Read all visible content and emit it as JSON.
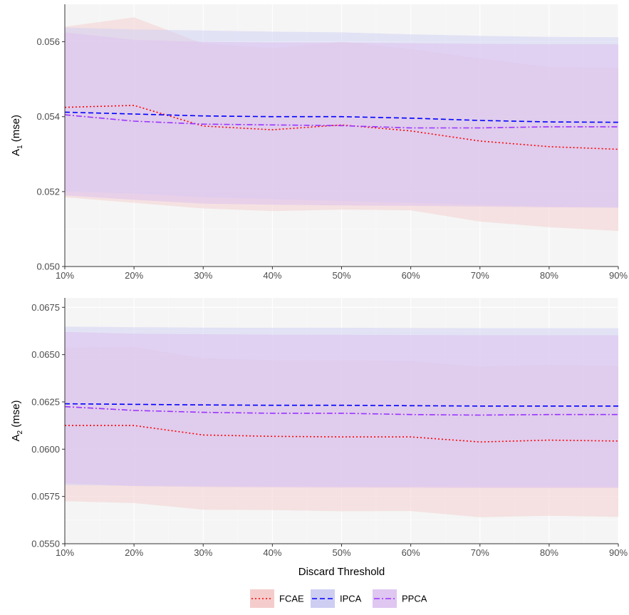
{
  "chart_data": [
    {
      "type": "line",
      "ylabel_main": "A",
      "ylabel_sub": "1",
      "ylabel_suffix": " (mse)",
      "ylim": [
        0.05,
        0.057
      ],
      "yticks": [
        "0.050",
        "0.052",
        "0.054",
        "0.056"
      ],
      "yticks_values": [
        0.05,
        0.052,
        0.054,
        0.056
      ],
      "x": [
        10,
        20,
        30,
        40,
        50,
        60,
        70,
        80,
        90
      ],
      "xticks": [
        "10%",
        "20%",
        "30%",
        "40%",
        "50%",
        "60%",
        "70%",
        "80%",
        "90%"
      ],
      "series": [
        {
          "name": "FCAE",
          "color": "#ff0000",
          "values": [
            0.05425,
            0.0543,
            0.05375,
            0.05365,
            0.05378,
            0.05362,
            0.05335,
            0.0532,
            0.05313
          ],
          "upper": [
            0.0564,
            0.05665,
            0.05595,
            0.05582,
            0.056,
            0.0558,
            0.05555,
            0.05532,
            0.0553
          ],
          "lower": [
            0.05185,
            0.0517,
            0.05155,
            0.05148,
            0.05152,
            0.0515,
            0.0512,
            0.05105,
            0.05095
          ]
        },
        {
          "name": "IPCA",
          "color": "#0000ff",
          "values": [
            0.05412,
            0.05407,
            0.05402,
            0.054,
            0.054,
            0.05396,
            0.0539,
            0.05386,
            0.05385
          ],
          "upper": [
            0.05638,
            0.05633,
            0.0563,
            0.05627,
            0.05625,
            0.0562,
            0.05616,
            0.05613,
            0.05612
          ],
          "lower": [
            0.052,
            0.05195,
            0.05185,
            0.0518,
            0.05175,
            0.0517,
            0.05165,
            0.0516,
            0.05158
          ]
        },
        {
          "name": "PPCA",
          "color": "#9933ff",
          "values": [
            0.05405,
            0.05388,
            0.0538,
            0.05378,
            0.05376,
            0.0537,
            0.0537,
            0.05373,
            0.05373
          ],
          "upper": [
            0.05625,
            0.05605,
            0.056,
            0.05598,
            0.05598,
            0.05596,
            0.05594,
            0.05593,
            0.05593
          ],
          "lower": [
            0.0519,
            0.05178,
            0.05168,
            0.05165,
            0.05163,
            0.05162,
            0.0516,
            0.05158,
            0.05157
          ]
        }
      ]
    },
    {
      "type": "line",
      "ylabel_main": "A",
      "ylabel_sub": "2",
      "ylabel_suffix": " (mse)",
      "xlabel": "Discard Threshold",
      "ylim": [
        0.055,
        0.068
      ],
      "yticks": [
        "0.0550",
        "0.0575",
        "0.0600",
        "0.0625",
        "0.0650",
        "0.0675"
      ],
      "yticks_values": [
        0.055,
        0.0575,
        0.06,
        0.0625,
        0.065,
        0.0675
      ],
      "x": [
        10,
        20,
        30,
        40,
        50,
        60,
        70,
        80,
        90
      ],
      "xticks": [
        "10%",
        "20%",
        "30%",
        "40%",
        "50%",
        "60%",
        "70%",
        "80%",
        "90%"
      ],
      "series": [
        {
          "name": "FCAE",
          "color": "#ff0000",
          "values": [
            0.06125,
            0.06125,
            0.06075,
            0.06068,
            0.06065,
            0.06065,
            0.06038,
            0.06048,
            0.06043
          ],
          "upper": [
            0.06535,
            0.0654,
            0.0648,
            0.0647,
            0.0647,
            0.06465,
            0.06435,
            0.06445,
            0.06438
          ],
          "lower": [
            0.05725,
            0.05715,
            0.0568,
            0.05678,
            0.05672,
            0.05673,
            0.0564,
            0.05648,
            0.05642
          ]
        },
        {
          "name": "IPCA",
          "color": "#0000ff",
          "values": [
            0.0624,
            0.06237,
            0.06234,
            0.06232,
            0.06232,
            0.0623,
            0.06228,
            0.06228,
            0.06228
          ],
          "upper": [
            0.06648,
            0.06645,
            0.06643,
            0.06642,
            0.06642,
            0.06641,
            0.0664,
            0.0664,
            0.0664
          ],
          "lower": [
            0.0581,
            0.05807,
            0.05805,
            0.05803,
            0.05803,
            0.05802,
            0.05801,
            0.05801,
            0.05801
          ]
        },
        {
          "name": "PPCA",
          "color": "#9933ff",
          "values": [
            0.06225,
            0.06205,
            0.06195,
            0.0619,
            0.0619,
            0.06183,
            0.0618,
            0.06183,
            0.06183
          ],
          "upper": [
            0.0662,
            0.0661,
            0.06608,
            0.06605,
            0.06605,
            0.06603,
            0.06602,
            0.06602,
            0.06602
          ],
          "lower": [
            0.0582,
            0.05805,
            0.058,
            0.05798,
            0.05797,
            0.05796,
            0.05795,
            0.05795,
            0.05795
          ]
        }
      ]
    }
  ],
  "legend": {
    "items": [
      {
        "name": "FCAE",
        "color": "#ff0000",
        "fill": "#f4c7c7",
        "dash": "2,3"
      },
      {
        "name": "IPCA",
        "color": "#0000ff",
        "fill": "#c9c9f2",
        "dash": "7,4"
      },
      {
        "name": "PPCA",
        "color": "#9933ff",
        "fill": "#dcc1ef",
        "dash": "8,3,2,3"
      }
    ],
    "placement": "bottom"
  },
  "colors": {
    "panel_bg": "#f5f5f5",
    "grid_major": "#ffffff",
    "grid_minor": "#fafafa",
    "band_fcae": "#f4cfcf",
    "band_ipca": "#cfcff5",
    "band_ppca": "#e0c5ef"
  }
}
